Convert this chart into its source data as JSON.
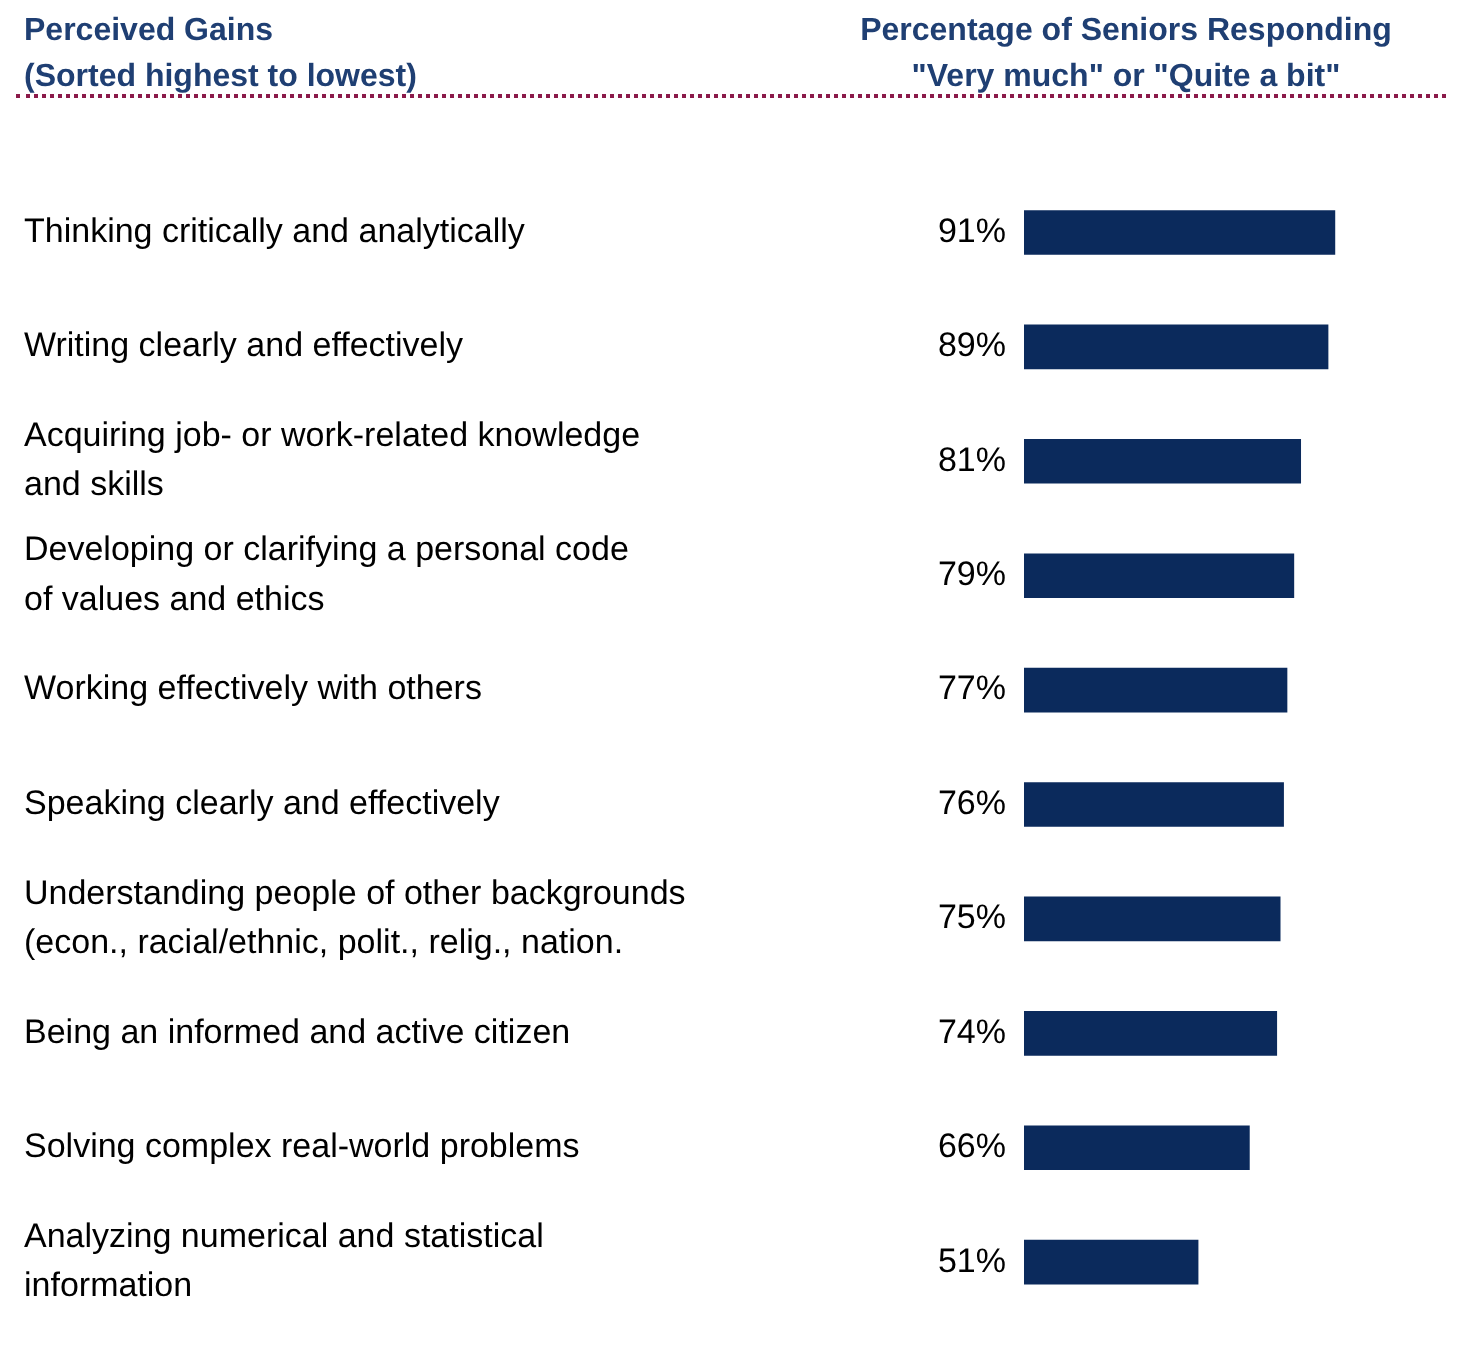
{
  "chart_data": {
    "type": "bar",
    "orientation": "horizontal",
    "ylabel": "Perceived Gains\n(Sorted highest to lowest)",
    "title": "Percentage of Seniors Responding\n\"Very much\" or \"Quite a bit\"",
    "categories": [
      "Thinking critically and analytically",
      "Writing clearly and effectively",
      "Acquiring job- or work-related knowledge\nand skills",
      "Developing or clarifying a personal code\nof values and ethics",
      "Working effectively with others",
      "Speaking clearly and effectively",
      "Understanding people of other backgrounds\n(econ., racial/ethnic, polit., relig., nation.",
      "Being an informed and active citizen",
      "Solving complex real-world problems",
      "Analyzing numerical and statistical\ninformation"
    ],
    "values": [
      91,
      89,
      81,
      79,
      77,
      76,
      75,
      74,
      66,
      51
    ],
    "value_labels": [
      "91%",
      "89%",
      "81%",
      "79%",
      "77%",
      "76%",
      "75%",
      "74%",
      "66%",
      "51%"
    ],
    "color": "#0b2a5c",
    "tick_labels": "y",
    "grid": false,
    "legend": false
  }
}
